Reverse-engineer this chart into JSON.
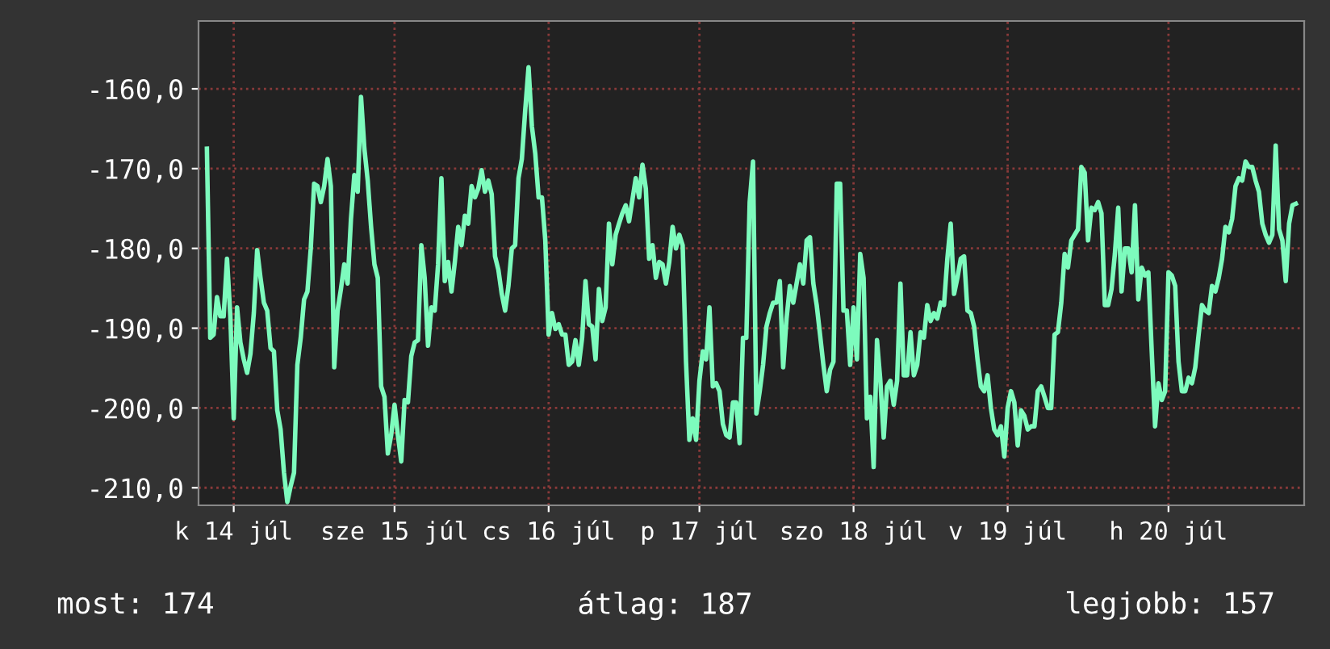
{
  "chart_data": {
    "type": "line",
    "categories": [
      null,
      null,
      null,
      null,
      null,
      null,
      null,
      null,
      "k 14 júl",
      null,
      null,
      null,
      null,
      null,
      null,
      null,
      null,
      null,
      null,
      null,
      null,
      null,
      null,
      null,
      null,
      null,
      null,
      null,
      null,
      null,
      null,
      null,
      null,
      null,
      null,
      null,
      null,
      null,
      null,
      null,
      null,
      null,
      null,
      null,
      null,
      null,
      null,
      null,
      null,
      null,
      null,
      null,
      null,
      null,
      null,
      null,
      "sze 15 júl",
      null,
      null,
      null,
      null,
      null,
      null,
      null,
      null,
      null,
      null,
      null,
      null,
      null,
      null,
      null,
      null,
      null,
      null,
      null,
      null,
      null,
      null,
      null,
      null,
      null,
      null,
      null,
      null,
      null,
      null,
      null,
      null,
      null,
      null,
      null,
      null,
      null,
      null,
      null,
      null,
      null,
      null,
      null,
      null,
      null,
      "cs 16 júl",
      null,
      null,
      null,
      null,
      null,
      null,
      null,
      null,
      null,
      null,
      null,
      null,
      null,
      null,
      null,
      null,
      null,
      null,
      null,
      null,
      null,
      null,
      null,
      null,
      null,
      null,
      null,
      null,
      null,
      null,
      null,
      null,
      null,
      null,
      null,
      null,
      null,
      null,
      null,
      null,
      null,
      null,
      null,
      null,
      "p 17 júl",
      null,
      null,
      null,
      null,
      null,
      null,
      null,
      null,
      null,
      null,
      null,
      null,
      null,
      null,
      null,
      null,
      null,
      null,
      null,
      null,
      null,
      null,
      null,
      null,
      null,
      null,
      null,
      null,
      null,
      null,
      null,
      null,
      null,
      null,
      null,
      null,
      null,
      null,
      null,
      null,
      null,
      null,
      null,
      null,
      null,
      "szo 18 júl",
      null,
      null,
      null,
      null,
      null,
      null,
      null,
      null,
      null,
      null,
      null,
      null,
      null,
      null,
      null,
      null,
      null,
      null,
      null,
      null,
      null,
      null,
      null,
      null,
      null,
      null,
      null,
      null,
      null,
      null,
      null,
      null,
      null,
      null,
      null,
      null,
      null,
      null,
      null,
      null,
      null,
      null,
      null,
      null,
      null,
      "v 19 júl",
      null,
      null,
      null,
      null,
      null,
      null,
      null,
      null,
      null,
      null,
      null,
      null,
      null,
      null,
      null,
      null,
      null,
      null,
      null,
      null,
      null,
      null,
      null,
      null,
      null,
      null,
      null,
      null,
      null,
      null,
      null,
      null,
      null,
      null,
      null,
      null,
      null,
      null,
      null,
      null,
      null,
      null,
      null,
      null,
      null,
      null,
      null,
      "h 20 júl",
      null,
      null,
      null,
      null,
      null,
      null,
      null,
      null,
      null,
      null,
      null,
      null,
      null,
      null,
      null,
      null,
      null,
      null,
      null,
      null,
      null,
      null,
      null,
      null,
      null,
      null,
      null,
      null,
      null,
      null,
      null,
      null,
      null,
      null,
      null,
      null,
      null,
      null
    ],
    "values": [
      -167.5,
      -191.2,
      -190.8,
      -186.1,
      -188.5,
      -188.5,
      -181.3,
      -188.5,
      -201.3,
      -187.4,
      -191.8,
      -193.9,
      -195.6,
      -193.2,
      -188.1,
      -180.2,
      -183.7,
      -186.8,
      -187.8,
      -192.5,
      -192.9,
      -200.3,
      -202.7,
      -208.1,
      -211.8,
      -209.8,
      -208.1,
      -194.6,
      -191.2,
      -186.4,
      -185.4,
      -180.0,
      -171.9,
      -172.2,
      -174.2,
      -172.2,
      -168.8,
      -172.2,
      -194.9,
      -187.8,
      -185.1,
      -182.0,
      -184.4,
      -176.3,
      -170.8,
      -172.9,
      -161.0,
      -167.5,
      -171.5,
      -177.3,
      -182.0,
      -183.7,
      -197.3,
      -198.6,
      -205.7,
      -203.4,
      -199.6,
      -203.4,
      -206.7,
      -199.0,
      -199.3,
      -193.5,
      -191.8,
      -191.5,
      -179.6,
      -183.7,
      -192.2,
      -187.4,
      -187.8,
      -182.0,
      -171.2,
      -184.1,
      -181.7,
      -185.4,
      -181.7,
      -177.3,
      -179.6,
      -175.9,
      -176.9,
      -172.2,
      -173.6,
      -172.5,
      -170.2,
      -172.9,
      -171.5,
      -173.2,
      -181.0,
      -182.7,
      -185.7,
      -187.8,
      -184.7,
      -180.0,
      -179.6,
      -171.2,
      -168.8,
      -162.7,
      -157.3,
      -164.7,
      -168.1,
      -173.6,
      -173.6,
      -179.0,
      -190.8,
      -188.1,
      -190.1,
      -189.5,
      -190.8,
      -190.8,
      -194.6,
      -194.2,
      -191.5,
      -194.6,
      -191.2,
      -184.1,
      -189.5,
      -189.8,
      -193.9,
      -185.1,
      -189.1,
      -187.4,
      -176.9,
      -182.0,
      -178.3,
      -176.9,
      -175.6,
      -174.6,
      -176.6,
      -173.9,
      -171.2,
      -173.6,
      -169.5,
      -172.5,
      -181.3,
      -179.6,
      -183.7,
      -181.7,
      -182.0,
      -184.4,
      -181.7,
      -177.3,
      -180.0,
      -178.3,
      -179.6,
      -194.2,
      -204.0,
      -201.3,
      -204.0,
      -196.6,
      -192.9,
      -193.9,
      -187.4,
      -197.3,
      -196.9,
      -197.9,
      -202.0,
      -203.4,
      -203.7,
      -199.3,
      -199.3,
      -204.4,
      -191.2,
      -191.2,
      -174.2,
      -169.1,
      -200.7,
      -197.9,
      -194.6,
      -189.8,
      -188.1,
      -186.8,
      -186.8,
      -184.1,
      -194.9,
      -188.8,
      -184.7,
      -186.8,
      -184.4,
      -182.0,
      -184.4,
      -179.0,
      -178.6,
      -184.4,
      -187.1,
      -190.8,
      -194.6,
      -197.9,
      -195.2,
      -194.2,
      -171.9,
      -171.9,
      -187.8,
      -187.8,
      -194.6,
      -187.4,
      -193.9,
      -180.7,
      -183.7,
      -201.3,
      -198.6,
      -207.4,
      -191.5,
      -196.6,
      -203.7,
      -197.3,
      -196.6,
      -199.6,
      -196.6,
      -184.4,
      -195.9,
      -195.9,
      -190.5,
      -195.9,
      -194.6,
      -190.5,
      -191.2,
      -187.1,
      -189.1,
      -188.1,
      -188.8,
      -186.8,
      -187.1,
      -181.3,
      -176.9,
      -185.7,
      -183.7,
      -181.3,
      -181.0,
      -187.8,
      -188.1,
      -189.8,
      -193.9,
      -197.3,
      -197.9,
      -195.9,
      -200.0,
      -202.7,
      -203.4,
      -202.3,
      -206.1,
      -200.0,
      -197.9,
      -199.3,
      -204.7,
      -200.3,
      -201.0,
      -202.7,
      -202.3,
      -202.3,
      -197.9,
      -197.3,
      -198.6,
      -200.0,
      -200.0,
      -190.8,
      -190.5,
      -186.8,
      -180.7,
      -182.4,
      -179.0,
      -178.3,
      -177.6,
      -169.8,
      -170.5,
      -179.0,
      -174.9,
      -175.2,
      -174.2,
      -175.6,
      -187.1,
      -187.1,
      -185.1,
      -180.7,
      -174.9,
      -185.4,
      -180.0,
      -180.0,
      -183.0,
      -174.6,
      -186.4,
      -182.4,
      -183.4,
      -183.0,
      -192.9,
      -202.3,
      -196.9,
      -199.0,
      -197.9,
      -183.0,
      -183.4,
      -184.7,
      -194.2,
      -197.9,
      -197.9,
      -196.2,
      -196.9,
      -194.9,
      -190.8,
      -187.1,
      -187.8,
      -188.1,
      -184.7,
      -185.4,
      -183.7,
      -181.3,
      -177.3,
      -178.0,
      -176.3,
      -172.2,
      -171.2,
      -171.5,
      -169.1,
      -169.8,
      -169.8,
      -171.5,
      -172.9,
      -176.9,
      -178.3,
      -179.3,
      -178.3,
      -167.1,
      -177.6,
      -179.0,
      -184.1,
      -176.9,
      -174.6,
      -174.4
    ],
    "color": "#7dfbbd",
    "ylim": [
      -212.2,
      -151.5
    ],
    "yticks": [
      {
        "value": -210,
        "label": "-210,0"
      },
      {
        "value": -200,
        "label": "-200,0"
      },
      {
        "value": -190,
        "label": "-190,0"
      },
      {
        "value": -180,
        "label": "-180,0"
      },
      {
        "value": -170,
        "label": "-170,0"
      },
      {
        "value": -160,
        "label": "-160,0"
      }
    ],
    "grid": true,
    "marker": "none",
    "line_style": "solid",
    "annotations": [
      "most: 174",
      "átlag: 187",
      "legjobb: 157"
    ]
  }
}
